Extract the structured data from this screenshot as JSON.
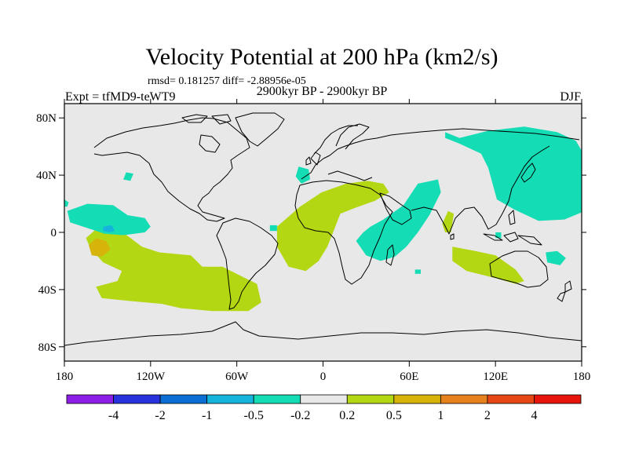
{
  "chart_data": {
    "type": "heatmap",
    "title": "Velocity Potential at 200 hPa (km2/s)",
    "stats": "rmsd= 0.181257 diff= -2.88956e-05",
    "subtitle": "2900kyr BP - 2900kyr BP",
    "left_label": "Expt = tfMD9-teWT9",
    "right_label": "DJF",
    "x_range": [
      -180,
      180
    ],
    "y_range": [
      -90,
      90
    ],
    "x_ticks": [
      {
        "value": -180,
        "label": "180"
      },
      {
        "value": -120,
        "label": "120W"
      },
      {
        "value": -60,
        "label": "60W"
      },
      {
        "value": 0,
        "label": "0"
      },
      {
        "value": 60,
        "label": "60E"
      },
      {
        "value": 120,
        "label": "120E"
      },
      {
        "value": 180,
        "label": "180"
      }
    ],
    "y_ticks": [
      {
        "value": 80,
        "label": "80N"
      },
      {
        "value": 40,
        "label": "40N"
      },
      {
        "value": 0,
        "label": "0"
      },
      {
        "value": -40,
        "label": "40S"
      },
      {
        "value": -80,
        "label": "80S"
      }
    ],
    "colorbar": {
      "colors": [
        "#8c1ee6",
        "#2832dc",
        "#0a6ed2",
        "#14b4dc",
        "#14dcb4",
        "#e8e8e8",
        "#b4d714",
        "#d7b40a",
        "#e6821e",
        "#e64614",
        "#e6140a"
      ],
      "labels": [
        "-4",
        "-2",
        "-1",
        "-0.5",
        "-0.2",
        "0.2",
        "0.5",
        "1",
        "2",
        "4"
      ]
    },
    "background_color": "#e8e8e8",
    "regions": [
      {
        "level": 0.5,
        "color": "#b4d714",
        "points": [
          [
            -92,
            -16
          ],
          [
            -84,
            -24
          ],
          [
            -70,
            -24
          ],
          [
            -58,
            -30
          ],
          [
            -46,
            -36
          ],
          [
            -43,
            -49
          ],
          [
            -52,
            -55
          ],
          [
            -77,
            -55
          ],
          [
            -99,
            -53
          ],
          [
            -112,
            -50
          ],
          [
            -134,
            -48
          ],
          [
            -154,
            -46
          ],
          [
            -158,
            -38
          ],
          [
            -143,
            -34
          ],
          [
            -140,
            -27
          ],
          [
            -153,
            -21
          ],
          [
            -162,
            -11
          ],
          [
            -165,
            -4
          ],
          [
            -157,
            3
          ],
          [
            -148,
            2
          ],
          [
            -138,
            -1
          ],
          [
            -126,
            -10
          ],
          [
            -114,
            -14
          ]
        ]
      },
      {
        "level": 1.0,
        "color": "#d7b40a",
        "points": [
          [
            -163,
            -9
          ],
          [
            -158,
            -4
          ],
          [
            -151,
            -6
          ],
          [
            -148,
            -12
          ],
          [
            -154,
            -17
          ],
          [
            -161,
            -16
          ]
        ]
      },
      {
        "level": 0.5,
        "color": "#b4d714",
        "points": [
          [
            -32,
            4
          ],
          [
            -16,
            18
          ],
          [
            -1,
            28
          ],
          [
            16,
            34
          ],
          [
            31,
            36
          ],
          [
            42,
            34
          ],
          [
            46,
            28
          ],
          [
            36,
            22
          ],
          [
            22,
            17
          ],
          [
            12,
            13
          ],
          [
            7,
            0
          ],
          [
            3,
            -10
          ],
          [
            -3,
            -20
          ],
          [
            -12,
            -27
          ],
          [
            -24,
            -24
          ],
          [
            -32,
            -10
          ]
        ]
      },
      {
        "level": 0.5,
        "color": "#b4d714",
        "points": [
          [
            90,
            -10
          ],
          [
            106,
            -13
          ],
          [
            120,
            -16
          ],
          [
            134,
            -26
          ],
          [
            140,
            -34
          ],
          [
            134,
            -36
          ],
          [
            120,
            -32
          ],
          [
            100,
            -27
          ],
          [
            90,
            -20
          ]
        ]
      },
      {
        "level": 0.5,
        "color": "#b4d714",
        "points": [
          [
            87,
            15
          ],
          [
            91,
            13
          ],
          [
            89,
            0
          ],
          [
            85,
            0
          ],
          [
            83,
            6
          ]
        ]
      },
      {
        "level": -0.2,
        "color": "#14dcb4",
        "points": [
          [
            -178,
            15
          ],
          [
            -164,
            20
          ],
          [
            -146,
            19
          ],
          [
            -136,
            12
          ],
          [
            -124,
            10
          ],
          [
            -120,
            4
          ],
          [
            -124,
            0
          ],
          [
            -139,
            -2
          ],
          [
            -152,
            -1
          ],
          [
            -164,
            3
          ],
          [
            -176,
            7
          ]
        ]
      },
      {
        "level": -0.5,
        "color": "#14b4dc",
        "points": [
          [
            -153,
            4
          ],
          [
            -147,
            5
          ],
          [
            -145,
            1
          ],
          [
            -149,
            0
          ],
          [
            -153,
            1
          ]
        ]
      },
      {
        "level": -0.2,
        "color": "#14dcb4",
        "points": [
          [
            -180,
            23
          ],
          [
            -177,
            21
          ],
          [
            -178,
            18
          ],
          [
            -180,
            18
          ]
        ]
      },
      {
        "level": -0.2,
        "color": "#14dcb4",
        "points": [
          [
            -137,
            42
          ],
          [
            -132,
            41
          ],
          [
            -134,
            36
          ],
          [
            -139,
            37
          ]
        ]
      },
      {
        "level": -0.2,
        "color": "#14dcb4",
        "points": [
          [
            -37,
            5
          ],
          [
            -32,
            5
          ],
          [
            -32,
            1
          ],
          [
            -37,
            1
          ]
        ]
      },
      {
        "level": -0.2,
        "color": "#14dcb4",
        "points": [
          [
            -17,
            46
          ],
          [
            -10,
            44
          ],
          [
            -9,
            37
          ],
          [
            -15,
            34
          ],
          [
            -19,
            39
          ]
        ]
      },
      {
        "level": -0.2,
        "color": "#14dcb4",
        "points": [
          [
            23,
            -6
          ],
          [
            28,
            0
          ],
          [
            33,
            4
          ],
          [
            42,
            9
          ],
          [
            56,
            19
          ],
          [
            66,
            34
          ],
          [
            80,
            37
          ],
          [
            82,
            28
          ],
          [
            74,
            12
          ],
          [
            66,
            0
          ],
          [
            58,
            -10
          ],
          [
            50,
            -17
          ],
          [
            40,
            -20
          ],
          [
            30,
            -16
          ]
        ]
      },
      {
        "level": -0.2,
        "color": "#14dcb4",
        "points": [
          [
            85,
            70
          ],
          [
            95,
            66
          ],
          [
            115,
            71
          ],
          [
            140,
            74
          ],
          [
            163,
            70
          ],
          [
            176,
            64
          ],
          [
            180,
            57
          ],
          [
            180,
            14
          ],
          [
            168,
            9
          ],
          [
            150,
            8
          ],
          [
            133,
            16
          ],
          [
            121,
            23
          ],
          [
            118,
            34
          ],
          [
            115,
            45
          ],
          [
            110,
            55
          ],
          [
            95,
            62
          ],
          [
            85,
            66
          ]
        ]
      },
      {
        "level": -0.2,
        "color": "#14dcb4",
        "points": [
          [
            155,
            -14
          ],
          [
            163,
            -13
          ],
          [
            169,
            -18
          ],
          [
            165,
            -23
          ],
          [
            156,
            -21
          ]
        ]
      },
      {
        "level": -0.2,
        "color": "#14dcb4",
        "points": [
          [
            120,
            0
          ],
          [
            124,
            0
          ],
          [
            124,
            -4
          ],
          [
            120,
            -4
          ]
        ]
      },
      {
        "level": -0.2,
        "color": "#14dcb4",
        "points": [
          [
            64,
            -26
          ],
          [
            68,
            -26
          ],
          [
            68,
            -29
          ],
          [
            64,
            -29
          ]
        ]
      }
    ]
  }
}
